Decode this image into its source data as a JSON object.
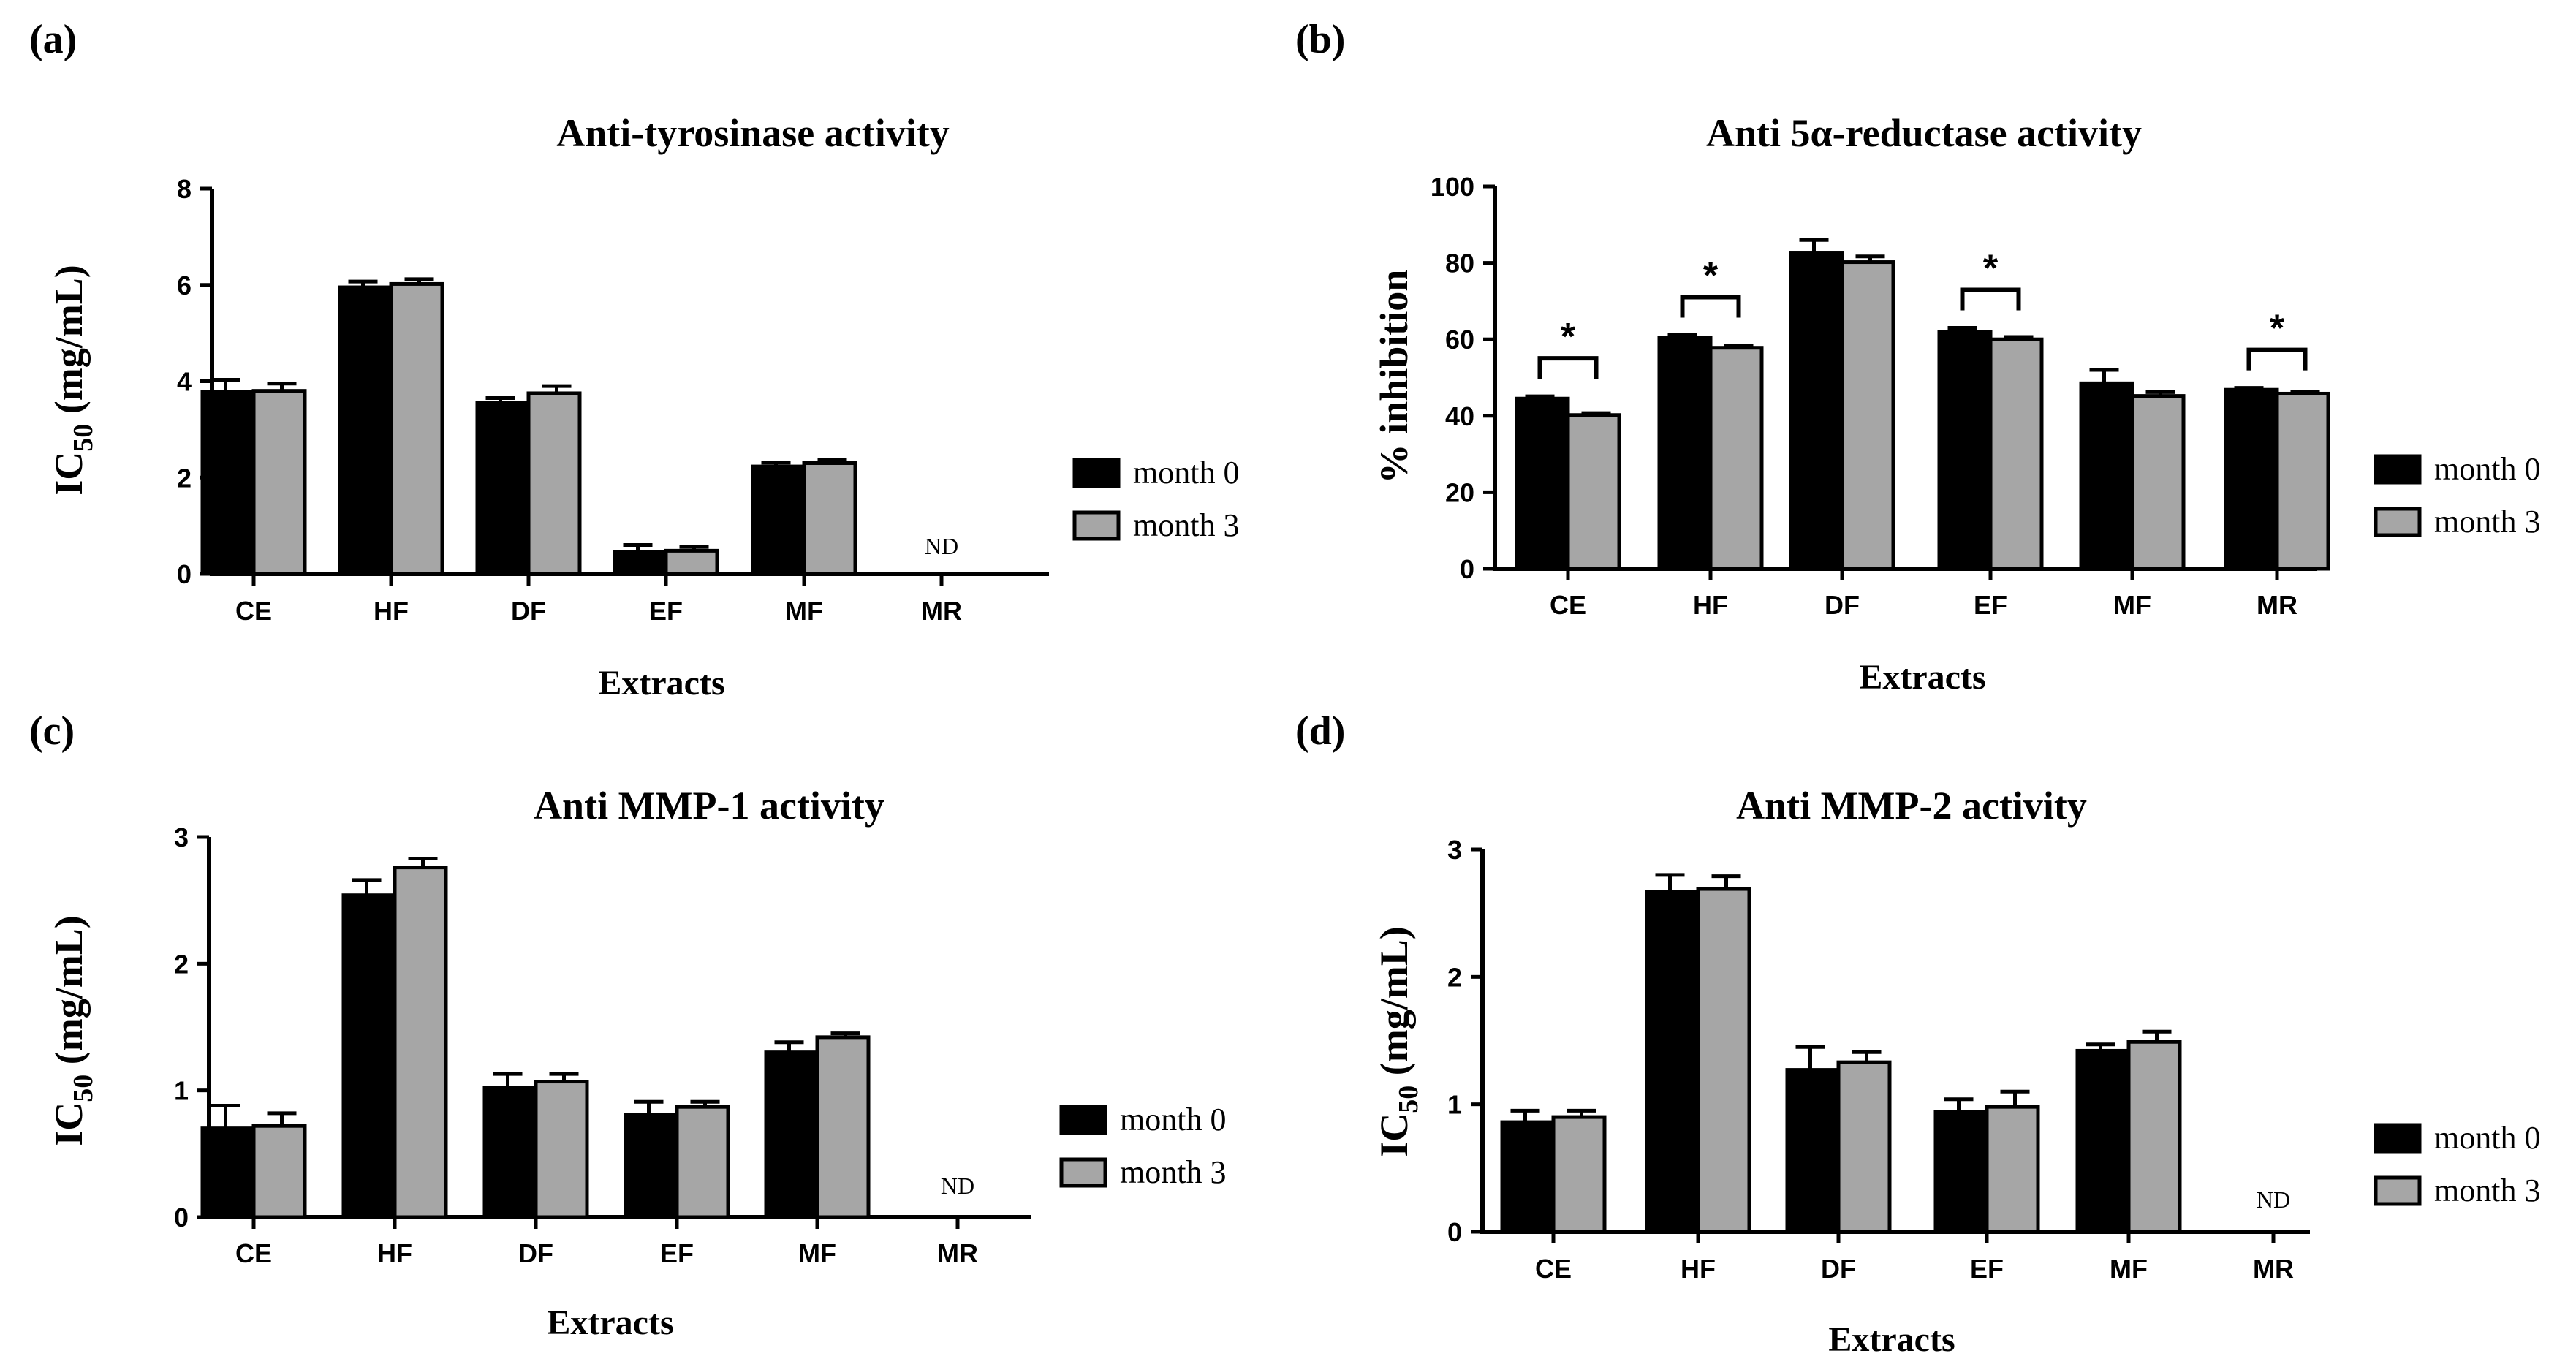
{
  "figure": {
    "panels": [
      "a",
      "b",
      "c",
      "d"
    ]
  },
  "chart_data": [
    {
      "panel_label": "(a)",
      "type": "bar",
      "title": "Anti-tyrosinase activity",
      "ylabel_main": "IC",
      "ylabel_sub": "50",
      "ylabel_unit": " (mg/mL)",
      "xlabel": "Extracts",
      "ylim": [
        0,
        8
      ],
      "yticks": [
        0,
        2,
        4,
        6,
        8
      ],
      "categories": [
        "CE",
        "HF",
        "DF",
        "EF",
        "MF",
        "MR"
      ],
      "series": [
        {
          "name": "month 0",
          "color": "#000000",
          "values": [
            3.78,
            5.95,
            3.55,
            0.45,
            2.23,
            null
          ],
          "errors": [
            0.25,
            0.12,
            0.1,
            0.15,
            0.08,
            null
          ]
        },
        {
          "name": "month 3",
          "color": "#a6a6a6",
          "values": [
            3.8,
            6.02,
            3.75,
            0.48,
            2.3,
            null
          ],
          "errors": [
            0.15,
            0.1,
            0.15,
            0.08,
            0.07,
            null
          ]
        }
      ],
      "annotations": [
        {
          "category": "MR",
          "text": "ND"
        }
      ],
      "significance": [],
      "legend": "right"
    },
    {
      "panel_label": "(b)",
      "type": "bar",
      "title": "Anti 5α-reductase activity",
      "ylabel_main": "% inhibition",
      "ylabel_sub": "",
      "ylabel_unit": "",
      "xlabel": "Extracts",
      "ylim": [
        0,
        100
      ],
      "yticks": [
        0,
        20,
        40,
        60,
        80,
        100
      ],
      "categories": [
        "CE",
        "HF",
        "DF",
        "EF",
        "MF",
        "MR"
      ],
      "series": [
        {
          "name": "month 0",
          "color": "#000000",
          "values": [
            44.5,
            60.5,
            82.5,
            62,
            48.5,
            46.8
          ],
          "errors": [
            0.6,
            0.6,
            3.5,
            1.0,
            3.5,
            0.5
          ]
        },
        {
          "name": "month 3",
          "color": "#a6a6a6",
          "values": [
            40.2,
            57.8,
            80.2,
            60,
            45.2,
            45.8
          ],
          "errors": [
            0.5,
            0.5,
            1.5,
            0.6,
            1.0,
            0.5
          ]
        }
      ],
      "annotations": [],
      "significance": [
        {
          "category": "CE",
          "text": "*"
        },
        {
          "category": "HF",
          "text": "*"
        },
        {
          "category": "EF",
          "text": "*"
        },
        {
          "category": "MR",
          "text": "*"
        }
      ],
      "legend": "right"
    },
    {
      "panel_label": "(c)",
      "type": "bar",
      "title": "Anti MMP-1 activity",
      "ylabel_main": "IC",
      "ylabel_sub": "50",
      "ylabel_unit": " (mg/mL)",
      "xlabel": "Extracts",
      "ylim": [
        0,
        3
      ],
      "yticks": [
        0,
        1,
        2,
        3
      ],
      "categories": [
        "CE",
        "HF",
        "DF",
        "EF",
        "MF",
        "MR"
      ],
      "series": [
        {
          "name": "month 0",
          "color": "#000000",
          "values": [
            0.7,
            2.54,
            1.02,
            0.81,
            1.3,
            null
          ],
          "errors": [
            0.18,
            0.12,
            0.11,
            0.1,
            0.08,
            null
          ]
        },
        {
          "name": "month 3",
          "color": "#a6a6a6",
          "values": [
            0.72,
            2.76,
            1.07,
            0.87,
            1.42,
            null
          ],
          "errors": [
            0.1,
            0.07,
            0.06,
            0.04,
            0.03,
            null
          ]
        }
      ],
      "annotations": [
        {
          "category": "MR",
          "text": "ND"
        }
      ],
      "significance": [],
      "legend": "right"
    },
    {
      "panel_label": "(d)",
      "type": "bar",
      "title": "Anti MMP-2 activity",
      "ylabel_main": "IC",
      "ylabel_sub": "50",
      "ylabel_unit": " (mg/mL)",
      "xlabel": "Extracts",
      "ylim": [
        0,
        3
      ],
      "yticks": [
        0,
        1,
        2,
        3
      ],
      "categories": [
        "CE",
        "HF",
        "DF",
        "EF",
        "MF",
        "MR"
      ],
      "series": [
        {
          "name": "month 0",
          "color": "#000000",
          "values": [
            0.86,
            2.67,
            1.27,
            0.94,
            1.42,
            null
          ],
          "errors": [
            0.09,
            0.13,
            0.18,
            0.1,
            0.05,
            null
          ]
        },
        {
          "name": "month 3",
          "color": "#a6a6a6",
          "values": [
            0.9,
            2.69,
            1.33,
            0.98,
            1.49,
            null
          ],
          "errors": [
            0.05,
            0.1,
            0.08,
            0.12,
            0.08,
            null
          ]
        }
      ],
      "annotations": [
        {
          "category": "MR",
          "text": "ND"
        }
      ],
      "significance": [],
      "legend": "right"
    }
  ]
}
